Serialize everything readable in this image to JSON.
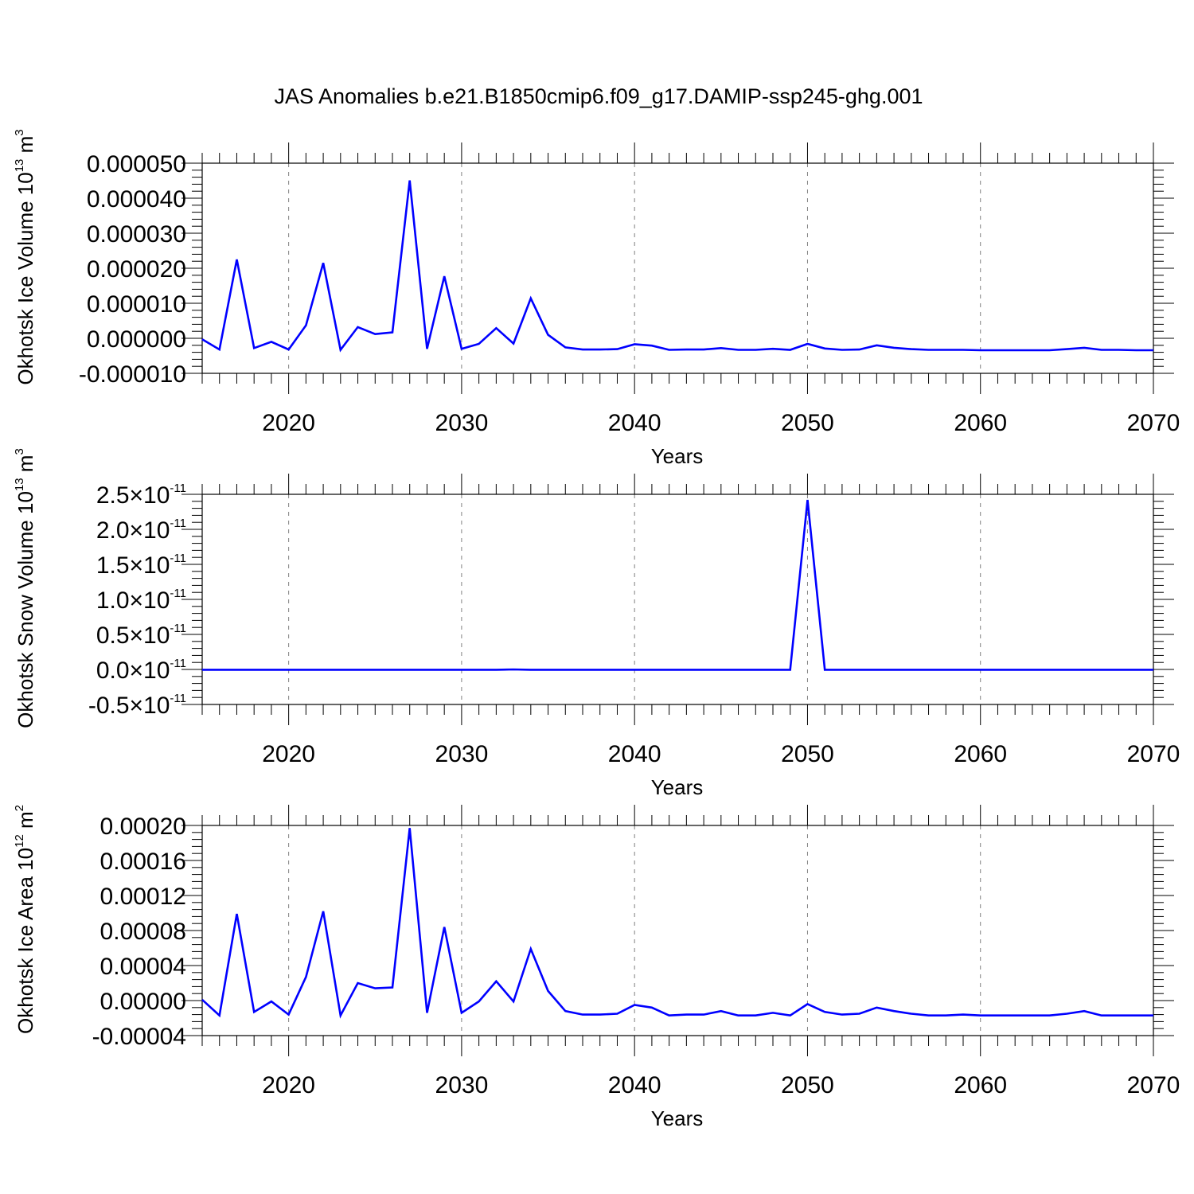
{
  "title": "JAS Anomalies b.e21.B1850cmip6.f09_g17.DAMIP-ssp245-ghg.001",
  "colors": {
    "series": "#0000ff",
    "axis": "#000000",
    "grid": "#808080"
  },
  "chart_data": [
    {
      "type": "line",
      "title": "",
      "xlabel": "Years",
      "ylabel": {
        "text": "Okhotsk Ice Volume 10",
        "exp": "13",
        "unit": " m",
        "unit_exp": "3"
      },
      "xlim": [
        2015,
        2070
      ],
      "ylim": [
        -1e-05,
        5e-05
      ],
      "x_ticks": [
        2020,
        2030,
        2040,
        2050,
        2060,
        2070
      ],
      "y_ticks": [
        {
          "v": 5e-05,
          "label": "0.000050"
        },
        {
          "v": 4e-05,
          "label": "0.000040"
        },
        {
          "v": 3e-05,
          "label": "0.000030"
        },
        {
          "v": 2e-05,
          "label": "0.000020"
        },
        {
          "v": 1e-05,
          "label": "0.000010"
        },
        {
          "v": 0.0,
          "label": "0.000000"
        },
        {
          "v": -1e-05,
          "label": "-0.000010"
        }
      ],
      "x_grid": "dashed vertical at major x ticks",
      "x": [
        2015,
        2016,
        2017,
        2018,
        2019,
        2020,
        2021,
        2022,
        2023,
        2024,
        2025,
        2026,
        2027,
        2028,
        2029,
        2030,
        2031,
        2032,
        2033,
        2034,
        2035,
        2036,
        2037,
        2038,
        2039,
        2040,
        2041,
        2042,
        2043,
        2044,
        2045,
        2046,
        2047,
        2048,
        2049,
        2050,
        2051,
        2052,
        2053,
        2054,
        2055,
        2056,
        2057,
        2058,
        2059,
        2060,
        2061,
        2062,
        2063,
        2064,
        2065,
        2066,
        2067,
        2068,
        2069,
        2070
      ],
      "values": [
        -3e-07,
        -3.2e-06,
        2.25e-05,
        -2.8e-06,
        -1e-06,
        -3.2e-06,
        3.7e-06,
        2.15e-05,
        -3.3e-06,
        3.2e-06,
        1.2e-06,
        1.7e-06,
        4.51e-05,
        -3e-06,
        1.77e-05,
        -3e-06,
        -1.6e-06,
        2.9e-06,
        -1.5e-06,
        1.14e-05,
        1e-06,
        -2.6e-06,
        -3.2e-06,
        -3.2e-06,
        -3.1e-06,
        -1.7e-06,
        -2.1e-06,
        -3.3e-06,
        -3.2e-06,
        -3.2e-06,
        -2.8e-06,
        -3.3e-06,
        -3.3e-06,
        -3e-06,
        -3.3e-06,
        -1.6e-06,
        -2.9e-06,
        -3.3e-06,
        -3.2e-06,
        -2e-06,
        -2.7e-06,
        -3.1e-06,
        -3.3e-06,
        -3.3e-06,
        -3.3e-06,
        -3.4e-06,
        -3.4e-06,
        -3.4e-06,
        -3.4e-06,
        -3.4e-06,
        -3.1e-06,
        -2.7e-06,
        -3.3e-06,
        -3.3e-06,
        -3.4e-06,
        -3.4e-06
      ]
    },
    {
      "type": "line",
      "title": "",
      "xlabel": "Years",
      "ylabel": {
        "text": "Okhotsk Snow Volume 10",
        "exp": "13",
        "unit": " m",
        "unit_exp": "3"
      },
      "xlim": [
        2015,
        2070
      ],
      "ylim": [
        -5e-12,
        2.5e-11
      ],
      "x_ticks": [
        2020,
        2030,
        2040,
        2050,
        2060,
        2070
      ],
      "y_ticks": [
        {
          "v": 2.5e-11,
          "mant": "2.5",
          "exp": "-11"
        },
        {
          "v": 2e-11,
          "mant": "2.0",
          "exp": "-11"
        },
        {
          "v": 1.5e-11,
          "mant": "1.5",
          "exp": "-11"
        },
        {
          "v": 1e-11,
          "mant": "1.0",
          "exp": "-11"
        },
        {
          "v": 5e-12,
          "mant": "0.5",
          "exp": "-11"
        },
        {
          "v": 0.0,
          "mant": "0.0",
          "exp": "-11"
        },
        {
          "v": -5e-12,
          "mant": "-0.5",
          "exp": "-11"
        }
      ],
      "x_grid": "dashed vertical at major x ticks",
      "x": [
        2015,
        2016,
        2017,
        2018,
        2019,
        2020,
        2021,
        2022,
        2023,
        2024,
        2025,
        2026,
        2027,
        2028,
        2029,
        2030,
        2031,
        2032,
        2033,
        2034,
        2035,
        2036,
        2037,
        2038,
        2039,
        2040,
        2041,
        2042,
        2043,
        2044,
        2045,
        2046,
        2047,
        2048,
        2049,
        2050,
        2051,
        2052,
        2053,
        2054,
        2055,
        2056,
        2057,
        2058,
        2059,
        2060,
        2061,
        2062,
        2063,
        2064,
        2065,
        2066,
        2067,
        2068,
        2069,
        2070
      ],
      "values": [
        -5e-14,
        -5e-14,
        -5e-14,
        -5e-14,
        -5e-14,
        -5e-14,
        -5e-14,
        -5e-14,
        -5e-14,
        -5e-14,
        -5e-14,
        -5e-14,
        -5e-14,
        -5e-14,
        -5e-14,
        -5e-14,
        -5e-14,
        -5e-14,
        0,
        -5e-14,
        -5e-14,
        -5e-14,
        -5e-14,
        -5e-14,
        -5e-14,
        -5e-14,
        -5e-14,
        -5e-14,
        -5e-14,
        -5e-14,
        -5e-14,
        -5e-14,
        -5e-14,
        -5e-14,
        -5e-14,
        2.42e-11,
        -5e-14,
        -5e-14,
        -5e-14,
        -5e-14,
        -5e-14,
        -5e-14,
        -5e-14,
        -5e-14,
        -5e-14,
        -5e-14,
        -5e-14,
        -5e-14,
        -5e-14,
        -5e-14,
        -5e-14,
        -5e-14,
        -5e-14,
        -5e-14,
        -5e-14,
        -5e-14
      ]
    },
    {
      "type": "line",
      "title": "",
      "xlabel": "Years",
      "ylabel": {
        "text": "Okhotsk Ice Area 10",
        "exp": "12",
        "unit": " m",
        "unit_exp": "2"
      },
      "xlim": [
        2015,
        2070
      ],
      "ylim": [
        -4e-05,
        0.0002
      ],
      "x_ticks": [
        2020,
        2030,
        2040,
        2050,
        2060,
        2070
      ],
      "y_ticks": [
        {
          "v": 0.0002,
          "label": "0.00020"
        },
        {
          "v": 0.00016,
          "label": "0.00016"
        },
        {
          "v": 0.00012,
          "label": "0.00012"
        },
        {
          "v": 8e-05,
          "label": "0.00008"
        },
        {
          "v": 4e-05,
          "label": "0.00004"
        },
        {
          "v": 0.0,
          "label": "0.00000"
        },
        {
          "v": -4e-05,
          "label": "-0.00004"
        }
      ],
      "x_grid": "dashed vertical at major x ticks",
      "x": [
        2015,
        2016,
        2017,
        2018,
        2019,
        2020,
        2021,
        2022,
        2023,
        2024,
        2025,
        2026,
        2027,
        2028,
        2029,
        2030,
        2031,
        2032,
        2033,
        2034,
        2035,
        2036,
        2037,
        2038,
        2039,
        2040,
        2041,
        2042,
        2043,
        2044,
        2045,
        2046,
        2047,
        2048,
        2049,
        2050,
        2051,
        2052,
        2053,
        2054,
        2055,
        2056,
        2057,
        2058,
        2059,
        2060,
        2061,
        2062,
        2063,
        2064,
        2065,
        2066,
        2067,
        2068,
        2069,
        2070
      ],
      "values": [
        1e-06,
        -1.7e-05,
        9.9e-05,
        -1.3e-05,
        -1e-06,
        -1.6e-05,
        2.7e-05,
        0.000102,
        -1.7e-05,
        2e-05,
        1.4e-05,
        1.5e-05,
        0.000197,
        -1.4e-05,
        8.4e-05,
        -1.4e-05,
        -1e-06,
        2.2e-05,
        -1e-06,
        5.9e-05,
        1.1e-05,
        -1.2e-05,
        -1.6e-05,
        -1.6e-05,
        -1.5e-05,
        -5e-06,
        -8e-06,
        -1.7e-05,
        -1.6e-05,
        -1.6e-05,
        -1.2e-05,
        -1.7e-05,
        -1.7e-05,
        -1.4e-05,
        -1.7e-05,
        -4e-06,
        -1.3e-05,
        -1.6e-05,
        -1.5e-05,
        -8e-06,
        -1.2e-05,
        -1.5e-05,
        -1.7e-05,
        -1.7e-05,
        -1.6e-05,
        -1.7e-05,
        -1.7e-05,
        -1.7e-05,
        -1.7e-05,
        -1.7e-05,
        -1.5e-05,
        -1.2e-05,
        -1.7e-05,
        -1.7e-05,
        -1.7e-05,
        -1.7e-05
      ]
    }
  ]
}
